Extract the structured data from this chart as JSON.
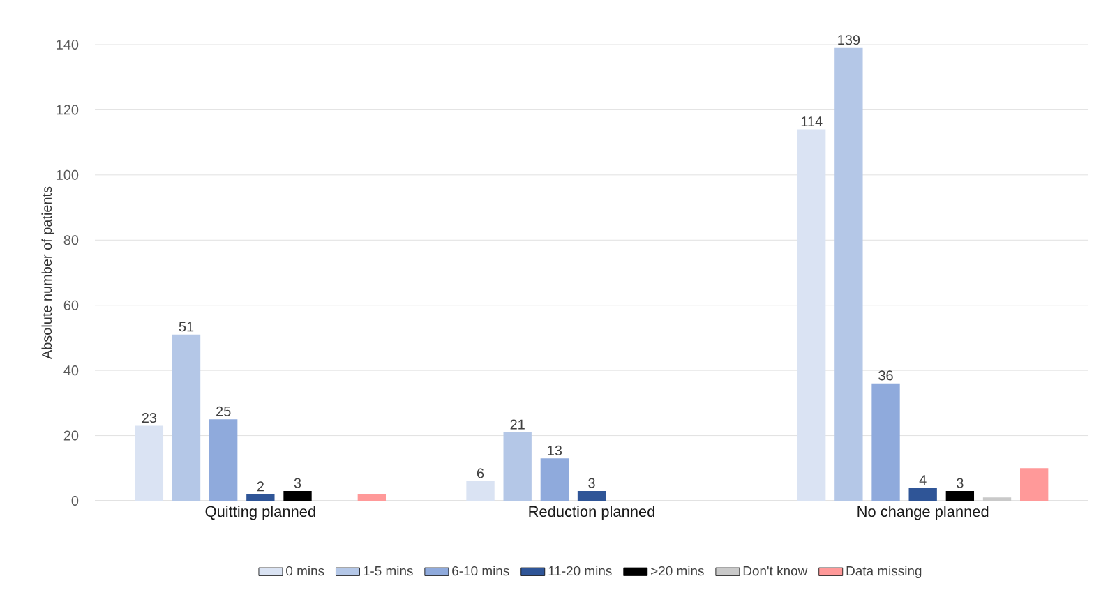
{
  "chart_data": {
    "type": "bar",
    "ylabel": "Absolute number of patients",
    "categories": [
      "Quitting planned",
      "Reduction planned",
      "No change planned"
    ],
    "series": [
      {
        "name": "0 mins",
        "color": "#dae3f3",
        "values": [
          23,
          6,
          114
        ],
        "value_labels": [
          "23",
          "6",
          "114"
        ]
      },
      {
        "name": "1-5 mins",
        "color": "#b4c7e7",
        "values": [
          51,
          21,
          139
        ],
        "value_labels": [
          "51",
          "21",
          "139"
        ]
      },
      {
        "name": "6-10 mins",
        "color": "#8faadc",
        "values": [
          25,
          13,
          36
        ],
        "value_labels": [
          "25",
          "13",
          "36"
        ]
      },
      {
        "name": "11-20 mins",
        "color": "#2f5597",
        "values": [
          2,
          3,
          4
        ],
        "value_labels": [
          "2",
          "3",
          "4"
        ]
      },
      {
        "name": ">20 mins",
        "color": "#000000",
        "values": [
          3,
          null,
          3
        ],
        "value_labels": [
          "3",
          null,
          "3"
        ]
      },
      {
        "name": "Don't know",
        "color": "#c9c9c9",
        "values": [
          null,
          null,
          1
        ]
      },
      {
        "name": "Data missing",
        "color": "#ff9999",
        "values": [
          2,
          null,
          10
        ]
      }
    ],
    "ylim": [
      0,
      140
    ],
    "yticks": [
      0,
      20,
      40,
      60,
      80,
      100,
      120,
      140
    ],
    "grid": "y",
    "legend": "bottom"
  }
}
